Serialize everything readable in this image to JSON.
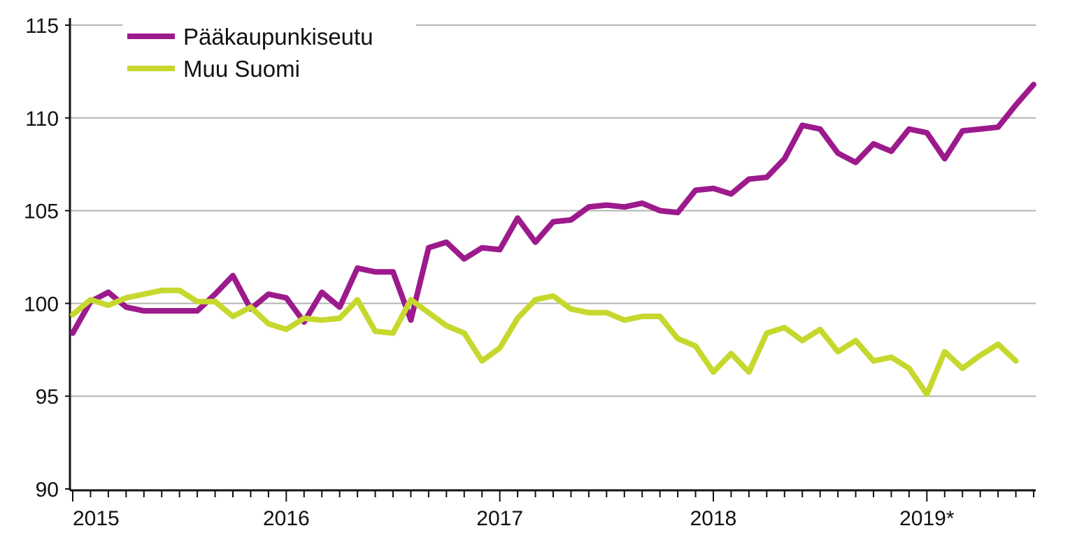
{
  "chart_data": {
    "type": "line",
    "title": "",
    "xlabel": "",
    "ylabel": "",
    "ylim": [
      90,
      115
    ],
    "yticks": [
      "90",
      "95",
      "100",
      "105",
      "110",
      "115"
    ],
    "ytick_values": [
      90,
      95,
      100,
      105,
      110,
      115
    ],
    "xtick_labels": [
      "2015",
      "2016",
      "2017",
      "2018",
      "2019*"
    ],
    "grid": "horizontal",
    "legend_position": "top-left",
    "months_start": "2015-01",
    "series": [
      {
        "name": "Pääkaupunkiseutu",
        "color": "#9c1a8c",
        "values": [
          98.4,
          100.1,
          100.6,
          99.8,
          99.6,
          99.6,
          99.6,
          99.6,
          100.5,
          101.5,
          99.7,
          100.5,
          100.3,
          99.0,
          100.6,
          99.8,
          101.9,
          101.7,
          101.7,
          99.1,
          103.0,
          103.3,
          102.4,
          103.0,
          102.9,
          104.6,
          103.3,
          104.4,
          104.5,
          105.2,
          105.3,
          105.2,
          105.4,
          105.0,
          104.9,
          106.1,
          106.2,
          105.9,
          106.7,
          106.8,
          107.8,
          109.6,
          109.4,
          108.1,
          107.6,
          108.6,
          108.2,
          109.4,
          109.2,
          107.8,
          109.3,
          109.4,
          109.5,
          110.7,
          111.8
        ]
      },
      {
        "name": "Muu Suomi",
        "color": "#c6d82e",
        "values": [
          99.4,
          100.2,
          99.9,
          100.3,
          100.5,
          100.7,
          100.7,
          100.1,
          100.1,
          99.3,
          99.8,
          98.9,
          98.6,
          99.2,
          99.1,
          99.2,
          100.2,
          98.5,
          98.4,
          100.2,
          99.5,
          98.8,
          98.4,
          96.9,
          97.6,
          99.2,
          100.2,
          100.4,
          99.7,
          99.5,
          99.5,
          99.1,
          99.3,
          99.3,
          98.1,
          97.7,
          96.3,
          97.3,
          96.3,
          98.4,
          98.7,
          98.0,
          98.6,
          97.4,
          98.0,
          96.9,
          97.1,
          96.5,
          95.1,
          97.4,
          96.5,
          97.2,
          97.8,
          96.9
        ]
      }
    ]
  }
}
